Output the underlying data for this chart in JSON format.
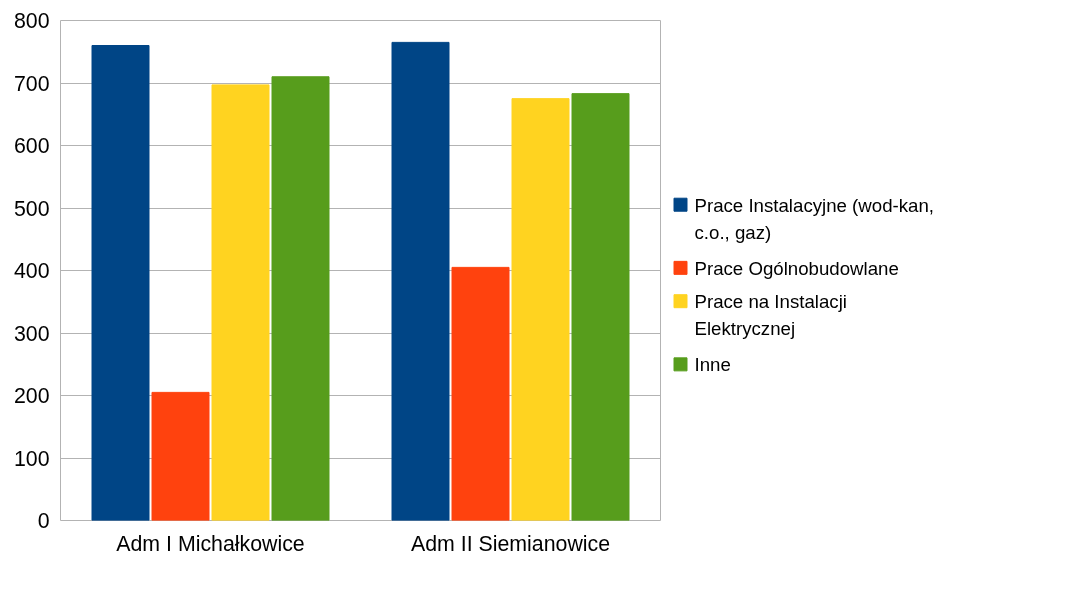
{
  "chart_data": {
    "type": "bar",
    "categories": [
      "Adm I Michałkowice",
      "Adm II Siemianowice"
    ],
    "series": [
      {
        "name": "Prace Instalacyjne (wod-kan, c.o., gaz)",
        "color": "#004586",
        "values": [
          760,
          765
        ]
      },
      {
        "name": "Prace Ogólnobudowlane",
        "color": "#ff420e",
        "values": [
          205,
          405
        ]
      },
      {
        "name": "Prace na Instalacji Elektrycznej",
        "color": "#ffd320",
        "values": [
          697,
          675
        ]
      },
      {
        "name": "Inne",
        "color": "#579d1c",
        "values": [
          710,
          683
        ]
      }
    ],
    "ylim": [
      0,
      800
    ],
    "yticks": [
      0,
      100,
      200,
      300,
      400,
      500,
      600,
      700,
      800
    ],
    "grid": "y",
    "legend": "right"
  }
}
